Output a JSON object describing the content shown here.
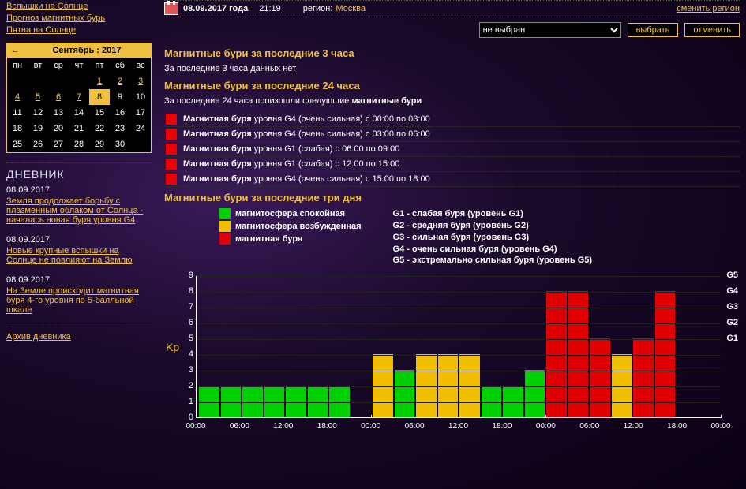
{
  "sidebar": {
    "links": [
      "Вспышки на Солнце",
      "Прогноз магнитных бурь",
      "Пятна на Солнце"
    ],
    "calendar": {
      "title": "Сентябрь : 2017",
      "dow": [
        "пн",
        "вт",
        "ср",
        "чт",
        "пт",
        "сб",
        "вс"
      ],
      "firstDowOffset": 4,
      "daysInMonth": 30,
      "linkedDays": [
        1,
        2,
        3,
        4,
        5,
        6,
        7,
        8
      ],
      "selectedDay": 8
    },
    "diary_heading": "ДНЕВНИК",
    "diary": [
      {
        "date": "08.09.2017",
        "title": "Земля продолжает борьбу с плазменным облаком от Солнца - началась новая буря уровня G4"
      },
      {
        "date": "08.09.2017",
        "title": "Новые крупные вспышки на Солнце не повлияют на Землю"
      },
      {
        "date": "08.09.2017",
        "title": "На Земле происходит магнитная буря 4-го уровня по 5-балльной шкале"
      }
    ],
    "archive": "Архив дневника"
  },
  "topbar": {
    "date": "08.09.2017 года",
    "time": "21:19",
    "region_label": "регион:",
    "region_value": "Москва",
    "switch": "сменить регион"
  },
  "selector": {
    "placeholder": "не выбран",
    "btn_select": "выбрать",
    "btn_cancel": "отменить"
  },
  "sections": {
    "h3_title": "Магнитные бури за последние 3 часа",
    "h3_text": "За последние 3 часа данных нет",
    "h24_title": "Магнитные бури за последние 24 часа",
    "h24_text_pre": "За последние 24 часа произошли следующие ",
    "h24_text_bold": "магнитные бури",
    "storms": [
      {
        "label": "Магнитная буря",
        "rest": " уровня G4 (очень сильная) с 00:00 по 03:00"
      },
      {
        "label": "Магнитная буря",
        "rest": " уровня G4 (очень сильная) с 03:00 по 06:00"
      },
      {
        "label": "Магнитная буря",
        "rest": " уровня G1 (слабая) с 06:00 по 09:00"
      },
      {
        "label": "Магнитная буря",
        "rest": " уровня G1 (слабая) с 12:00 по 15:00"
      },
      {
        "label": "Магнитная буря",
        "rest": " уровня G4 (очень сильная) с 15:00 по 18:00"
      }
    ],
    "h3d_title": "Магнитные бури за последние три дня"
  },
  "chart": {
    "legend1": [
      {
        "color": "#00d000",
        "label": "магнитосфера спокойная"
      },
      {
        "color": "#f0c000",
        "label": "магнитосфера возбужденная"
      },
      {
        "color": "#e00000",
        "label": "магнитная буря"
      }
    ],
    "legend2": [
      "G1 - слабая буря (уровень G1)",
      "G2 - средняя буря (уровень G2)",
      "G3 - сильная буря (уровень G3)",
      "G4 - очень сильная буря (уровень G4)",
      "G5 - экстремально сильная буря (уровень G5)"
    ],
    "kp_label": "Kp",
    "ymax": 9,
    "yticks": [
      0,
      1,
      2,
      3,
      4,
      5,
      6,
      7,
      8,
      9
    ],
    "right_ticks": [
      {
        "label": "G1",
        "at": 5
      },
      {
        "label": "G2",
        "at": 6
      },
      {
        "label": "G3",
        "at": 7
      },
      {
        "label": "G4",
        "at": 8
      },
      {
        "label": "G5",
        "at": 9
      }
    ],
    "colors": {
      "calm": "#00d000",
      "excited": "#f0c000",
      "storm": "#e00000",
      "axis": "#ffffff",
      "bg": "transparent"
    },
    "bars": [
      2,
      2,
      2,
      2,
      2,
      2,
      2,
      0,
      4,
      3,
      4,
      4,
      4,
      2,
      2,
      3,
      8,
      8,
      5,
      4,
      5,
      8,
      null,
      null
    ],
    "xticks_per_day": [
      "00:00",
      "06:00",
      "12:00",
      "18:00"
    ],
    "days": 3
  }
}
